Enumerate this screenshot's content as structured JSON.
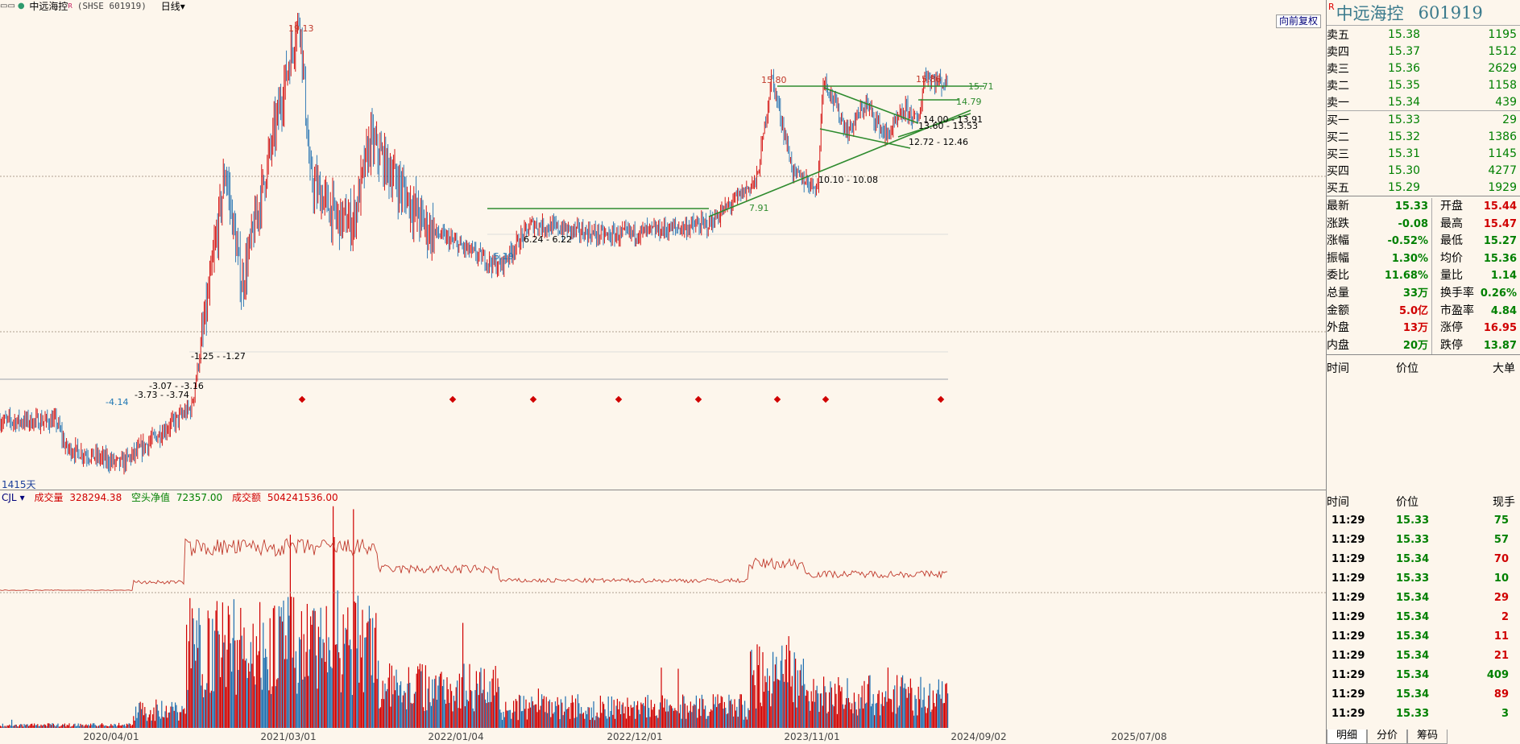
{
  "topbar": {
    "menu_icon": "▭▭",
    "title": "中远海控",
    "r_mark": "R",
    "code": "(SHSE 601919)",
    "period": "日线",
    "period_caret": "▾"
  },
  "main": {
    "fq_button": "向前复权",
    "days_label": "1415天",
    "annotations": [
      {
        "text": "19.13",
        "color": "#c0392b"
      },
      {
        "text": "15.80",
        "color": "#c0392b"
      },
      {
        "text": "15.86",
        "color": "#c0392b"
      },
      {
        "text": "15.71",
        "color": "#2e8b2e"
      },
      {
        "text": "14.79",
        "color": "#2e8b2e"
      },
      {
        "text": "14.00 - 13.91",
        "color": "#000"
      },
      {
        "text": "13.60 - 13.53",
        "color": "#000"
      },
      {
        "text": "12.72 - 12.46",
        "color": "#000"
      },
      {
        "text": "10.10 - 10.08",
        "color": "#000"
      },
      {
        "text": "7.91",
        "color": "#2e8b2e"
      },
      {
        "text": "6.24 - 6.22",
        "color": "#000"
      },
      {
        "text": "5.19",
        "color": "#1f77b4"
      },
      {
        "text": "-1.25 - -1.27",
        "color": "#000"
      },
      {
        "text": "-3.07 - -3.16",
        "color": "#000"
      },
      {
        "text": "-3.73 - -3.74",
        "color": "#000"
      },
      {
        "text": "-4.14",
        "color": "#1f77b4"
      }
    ]
  },
  "volume": {
    "indicator": "CJL",
    "indicator_caret": "▾",
    "vol_label": "成交量",
    "vol_value": "328294.38",
    "net_label": "空头净值",
    "net_value": "72357.00",
    "amount_label": "成交额",
    "amount_value": "504241536.00"
  },
  "x_axis": [
    "2020/04/01",
    "2021/03/01",
    "2022/01/04",
    "2022/12/01",
    "2023/11/01",
    "2024/09/02",
    "2025/07/08"
  ],
  "quote": {
    "r_mark": "R",
    "name": "中远海控",
    "code": "601919",
    "sells": [
      {
        "label": "卖五",
        "price": "15.38",
        "qty": "1195"
      },
      {
        "label": "卖四",
        "price": "15.37",
        "qty": "1512"
      },
      {
        "label": "卖三",
        "price": "15.36",
        "qty": "2629"
      },
      {
        "label": "卖二",
        "price": "15.35",
        "qty": "1158"
      },
      {
        "label": "卖一",
        "price": "15.34",
        "qty": "439"
      }
    ],
    "buys": [
      {
        "label": "买一",
        "price": "15.33",
        "qty": "29"
      },
      {
        "label": "买二",
        "price": "15.32",
        "qty": "1386"
      },
      {
        "label": "买三",
        "price": "15.31",
        "qty": "1145"
      },
      {
        "label": "买四",
        "price": "15.30",
        "qty": "4277"
      },
      {
        "label": "买五",
        "price": "15.29",
        "qty": "1929"
      }
    ],
    "stats": [
      {
        "l1": "最新",
        "v1": "15.33",
        "c1": "#008000",
        "l2": "开盘",
        "v2": "15.44",
        "c2": "#d00000"
      },
      {
        "l1": "涨跌",
        "v1": "-0.08",
        "c1": "#008000",
        "l2": "最高",
        "v2": "15.47",
        "c2": "#d00000"
      },
      {
        "l1": "涨幅",
        "v1": "-0.52%",
        "c1": "#008000",
        "l2": "最低",
        "v2": "15.27",
        "c2": "#008000"
      },
      {
        "l1": "振幅",
        "v1": "1.30%",
        "c1": "#008000",
        "l2": "均价",
        "v2": "15.36",
        "c2": "#008000"
      },
      {
        "l1": "委比",
        "v1": "11.68%",
        "c1": "#008000",
        "l2": "量比",
        "v2": "1.14",
        "c2": "#008000"
      },
      {
        "l1": "总量",
        "v1": "33万",
        "c1": "#008000",
        "l2": "换手率",
        "v2": "0.26%",
        "c2": "#008000"
      },
      {
        "l1": "金额",
        "v1": "5.0亿",
        "c1": "#d00000",
        "l2": "市盈率",
        "v2": "4.84",
        "c2": "#008000"
      },
      {
        "l1": "外盘",
        "v1": "13万",
        "c1": "#d00000",
        "l2": "涨停",
        "v2": "16.95",
        "c2": "#d00000"
      },
      {
        "l1": "内盘",
        "v1": "20万",
        "c1": "#008000",
        "l2": "跌停",
        "v2": "13.87",
        "c2": "#008000"
      }
    ],
    "big_header": {
      "time": "时间",
      "price": "价位",
      "big": "大单"
    }
  },
  "trades": {
    "header": {
      "time": "时间",
      "price": "价位",
      "volume": "现手"
    },
    "rows": [
      {
        "time": "11:29",
        "price": "15.33",
        "vol": "75",
        "vcolor": "#008000"
      },
      {
        "time": "11:29",
        "price": "15.33",
        "vol": "57",
        "vcolor": "#008000"
      },
      {
        "time": "11:29",
        "price": "15.34",
        "vol": "70",
        "vcolor": "#d00000"
      },
      {
        "time": "11:29",
        "price": "15.33",
        "vol": "10",
        "vcolor": "#008000"
      },
      {
        "time": "11:29",
        "price": "15.34",
        "vol": "29",
        "vcolor": "#d00000"
      },
      {
        "time": "11:29",
        "price": "15.34",
        "vol": "2",
        "vcolor": "#d00000"
      },
      {
        "time": "11:29",
        "price": "15.34",
        "vol": "11",
        "vcolor": "#d00000"
      },
      {
        "time": "11:29",
        "price": "15.34",
        "vol": "21",
        "vcolor": "#d00000"
      },
      {
        "time": "11:29",
        "price": "15.34",
        "vol": "409",
        "vcolor": "#008000"
      },
      {
        "time": "11:29",
        "price": "15.34",
        "vol": "89",
        "vcolor": "#d00000"
      },
      {
        "time": "11:29",
        "price": "15.33",
        "vol": "3",
        "vcolor": "#008000"
      }
    ]
  },
  "tabs": [
    "明细",
    "分价",
    "筹码"
  ],
  "colors": {
    "up": "#d00000",
    "down": "#1f6fb0",
    "trend": "#2e8b2e",
    "bg": "#FDF6EC"
  }
}
